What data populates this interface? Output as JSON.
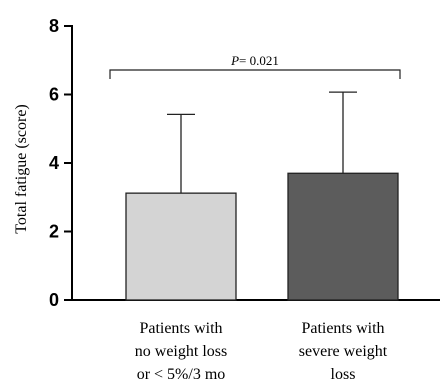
{
  "chart_data": {
    "type": "bar",
    "title": "",
    "xlabel": "",
    "ylabel": "Total fatigue (score)",
    "ylim": [
      0,
      8
    ],
    "yticks": [
      0,
      2,
      4,
      6,
      8
    ],
    "grid": false,
    "categories": [
      [
        "Patients with",
        "no weight loss",
        "or < 5%/3 mo"
      ],
      [
        "Patients with",
        "severe weight",
        "loss"
      ]
    ],
    "values": [
      3.12,
      3.7
    ],
    "error_upper": [
      5.42,
      6.07
    ],
    "bar_colors": [
      "#d4d4d4",
      "#5c5c5c"
    ],
    "annotation": {
      "p_symbol": "P",
      "p_text": "= 0.021",
      "between": [
        0,
        1
      ]
    }
  }
}
